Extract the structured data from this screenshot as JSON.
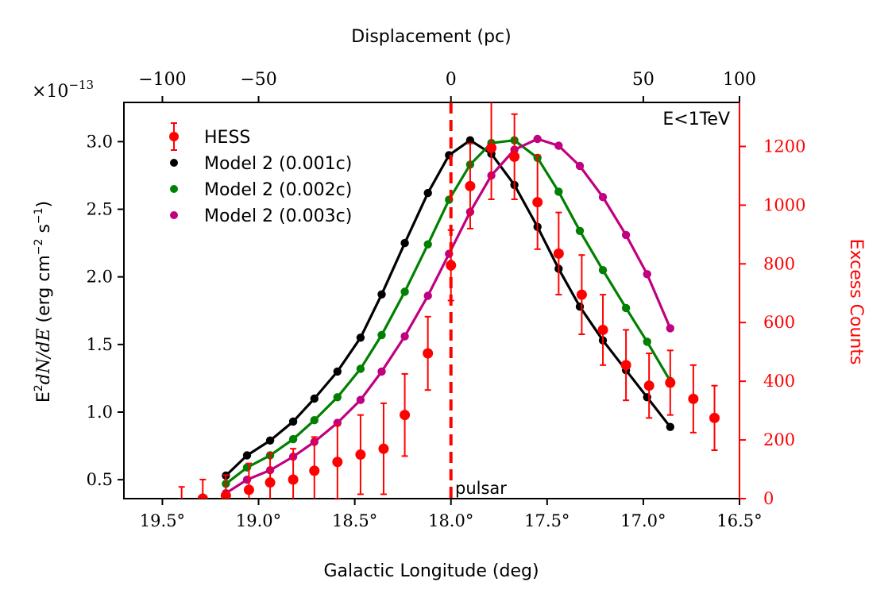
{
  "chart_data": {
    "type": "line",
    "annotation": "E<1TeV",
    "pulsar_label": "pulsar",
    "pulsar_l": 18.0,
    "xlabel": "Galactic Longitude (deg)",
    "xlim": [
      19.7,
      16.5
    ],
    "xticks": [
      19.5,
      19.0,
      18.5,
      18.0,
      17.5,
      17.0,
      16.5
    ],
    "xtick_labels": [
      "19.5°",
      "19.0°",
      "18.5°",
      "18.0°",
      "17.5°",
      "17.0°",
      "16.5°"
    ],
    "top_axis": {
      "label": "Displacement (pc)",
      "ticks": [
        -100,
        -50,
        0,
        50,
        100
      ],
      "tick_labels": [
        "−100",
        "−50",
        "0",
        "50",
        "100"
      ],
      "tick_l": [
        19.5,
        19.0,
        18.0,
        17.0,
        16.5
      ]
    },
    "y_left": {
      "label_main": "E",
      "label_sup": "2",
      "label_rest_math": "dN/dE",
      "label_units": " (erg cm",
      "label_units_sup1": "−2",
      "label_units_mid": " s",
      "label_units_sup2": "−1",
      "label_units_end": ")",
      "multiplier_base": "×10",
      "multiplier_exp": "−13",
      "ylim": [
        0.36,
        3.29
      ],
      "ticks": [
        0.5,
        1.0,
        1.5,
        2.0,
        2.5,
        3.0
      ],
      "tick_labels": [
        "0.5",
        "1.0",
        "1.5",
        "2.0",
        "2.5",
        "3.0"
      ]
    },
    "y_right": {
      "label": "Excess Counts",
      "ylim": [
        0,
        1350
      ],
      "ticks": [
        0,
        200,
        400,
        600,
        800,
        1000,
        1200
      ],
      "tick_labels": [
        "0",
        "200",
        "400",
        "600",
        "800",
        "1000",
        "1200"
      ],
      "color": "#ff0000"
    },
    "series": [
      {
        "name": "Model 2 (0.001c)",
        "color": "#000000",
        "x": [
          19.17,
          19.06,
          18.94,
          18.82,
          18.71,
          18.59,
          18.47,
          18.36,
          18.24,
          18.12,
          18.01,
          17.9,
          17.79,
          17.67,
          17.55,
          17.44,
          17.33,
          17.21,
          17.09,
          16.98,
          16.86
        ],
        "y": [
          0.53,
          0.68,
          0.79,
          0.93,
          1.1,
          1.3,
          1.55,
          1.87,
          2.25,
          2.62,
          2.9,
          3.01,
          2.91,
          2.68,
          2.37,
          2.06,
          1.78,
          1.53,
          1.31,
          1.11,
          0.89
        ]
      },
      {
        "name": "Model 2 (0.002c)",
        "color": "#008000",
        "x": [
          19.17,
          19.06,
          18.94,
          18.82,
          18.71,
          18.59,
          18.47,
          18.36,
          18.24,
          18.12,
          18.01,
          17.9,
          17.79,
          17.67,
          17.55,
          17.44,
          17.33,
          17.21,
          17.09,
          16.98,
          16.86
        ],
        "y": [
          0.47,
          0.59,
          0.68,
          0.8,
          0.94,
          1.11,
          1.32,
          1.57,
          1.89,
          2.24,
          2.57,
          2.83,
          2.99,
          3.01,
          2.88,
          2.63,
          2.34,
          2.05,
          1.77,
          1.52,
          1.23
        ]
      },
      {
        "name": "Model 2 (0.003c)",
        "color": "#c00080",
        "x": [
          19.17,
          19.06,
          18.94,
          18.82,
          18.71,
          18.59,
          18.47,
          18.36,
          18.24,
          18.12,
          18.01,
          17.9,
          17.79,
          17.67,
          17.55,
          17.44,
          17.33,
          17.21,
          17.09,
          16.98,
          16.86
        ],
        "y": [
          0.4,
          0.5,
          0.57,
          0.67,
          0.78,
          0.92,
          1.09,
          1.3,
          1.56,
          1.86,
          2.17,
          2.48,
          2.75,
          2.94,
          3.02,
          2.97,
          2.82,
          2.59,
          2.31,
          2.02,
          1.62
        ]
      }
    ],
    "hess": {
      "name": "HESS",
      "color": "#ff0000",
      "x": [
        19.4,
        19.29,
        19.17,
        19.05,
        18.94,
        18.82,
        18.71,
        18.59,
        18.47,
        18.35,
        18.24,
        18.12,
        18.0,
        17.9,
        17.79,
        17.67,
        17.55,
        17.44,
        17.32,
        17.21,
        17.09,
        16.97,
        16.86,
        16.74,
        16.63
      ],
      "counts": [
        -20,
        0,
        10,
        30,
        55,
        65,
        95,
        125,
        150,
        170,
        285,
        495,
        795,
        1065,
        1195,
        1165,
        1010,
        835,
        695,
        575,
        455,
        385,
        395,
        340,
        275
      ],
      "err": [
        60,
        65,
        70,
        90,
        100,
        105,
        115,
        125,
        135,
        155,
        140,
        125,
        120,
        145,
        175,
        145,
        160,
        140,
        135,
        120,
        120,
        110,
        110,
        115,
        110
      ]
    }
  }
}
